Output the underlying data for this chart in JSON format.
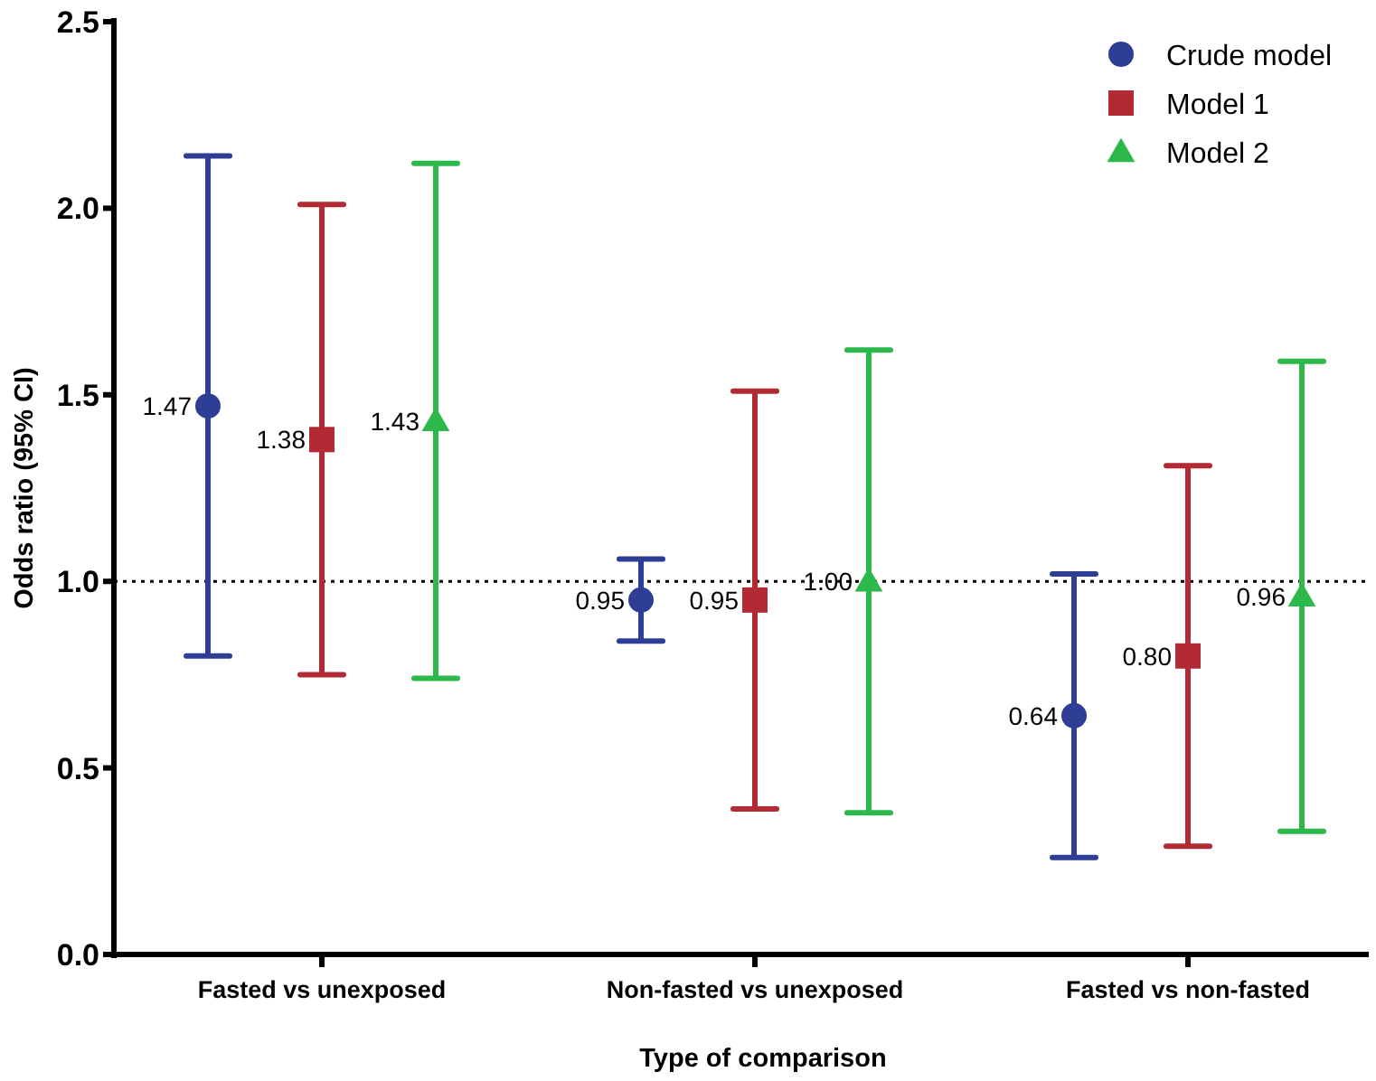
{
  "chart_data": {
    "type": "scatter",
    "xlabel": "Type of comparison",
    "ylabel": "Odds ratio (95% CI)",
    "categories": [
      "Fasted vs unexposed",
      "Non-fasted vs unexposed",
      "Fasted vs non-fasted"
    ],
    "series": [
      {
        "name": "Crude model",
        "color": "#2e3e94",
        "marker": "circle",
        "values": [
          1.47,
          0.95,
          0.64
        ],
        "errors": [
          [
            0.8,
            2.14
          ],
          [
            0.84,
            1.06
          ],
          [
            0.26,
            1.02
          ]
        ],
        "value_labels": [
          "1.47",
          "0.95",
          "0.64"
        ]
      },
      {
        "name": "Model 1",
        "color": "#b22a33",
        "marker": "square",
        "values": [
          1.38,
          0.95,
          0.8
        ],
        "errors": [
          [
            0.75,
            2.01
          ],
          [
            0.39,
            1.51
          ],
          [
            0.29,
            1.31
          ]
        ],
        "value_labels": [
          "1.38",
          "0.95",
          "0.80"
        ]
      },
      {
        "name": "Model 2",
        "color": "#2db84c",
        "marker": "triangle",
        "values": [
          1.43,
          1.0,
          0.96
        ],
        "errors": [
          [
            0.74,
            2.12
          ],
          [
            0.38,
            1.62
          ],
          [
            0.33,
            1.59
          ]
        ],
        "value_labels": [
          "1.43",
          "1.00",
          "0.96"
        ]
      }
    ],
    "ylim": [
      0,
      2.5
    ],
    "yticks": [
      {
        "value": 0,
        "label": "0.0"
      },
      {
        "value": 0.5,
        "label": "0.5"
      },
      {
        "value": 1,
        "label": "1.0"
      },
      {
        "value": 1.5,
        "label": "1.5"
      },
      {
        "value": 2,
        "label": "2.0"
      },
      {
        "value": 2.5,
        "label": "2.5"
      }
    ],
    "ref_lines": [
      {
        "axis": "y",
        "value": 1,
        "color": "#000000",
        "line_style": "dotted"
      }
    ],
    "legend": "top right",
    "grid": false
  }
}
